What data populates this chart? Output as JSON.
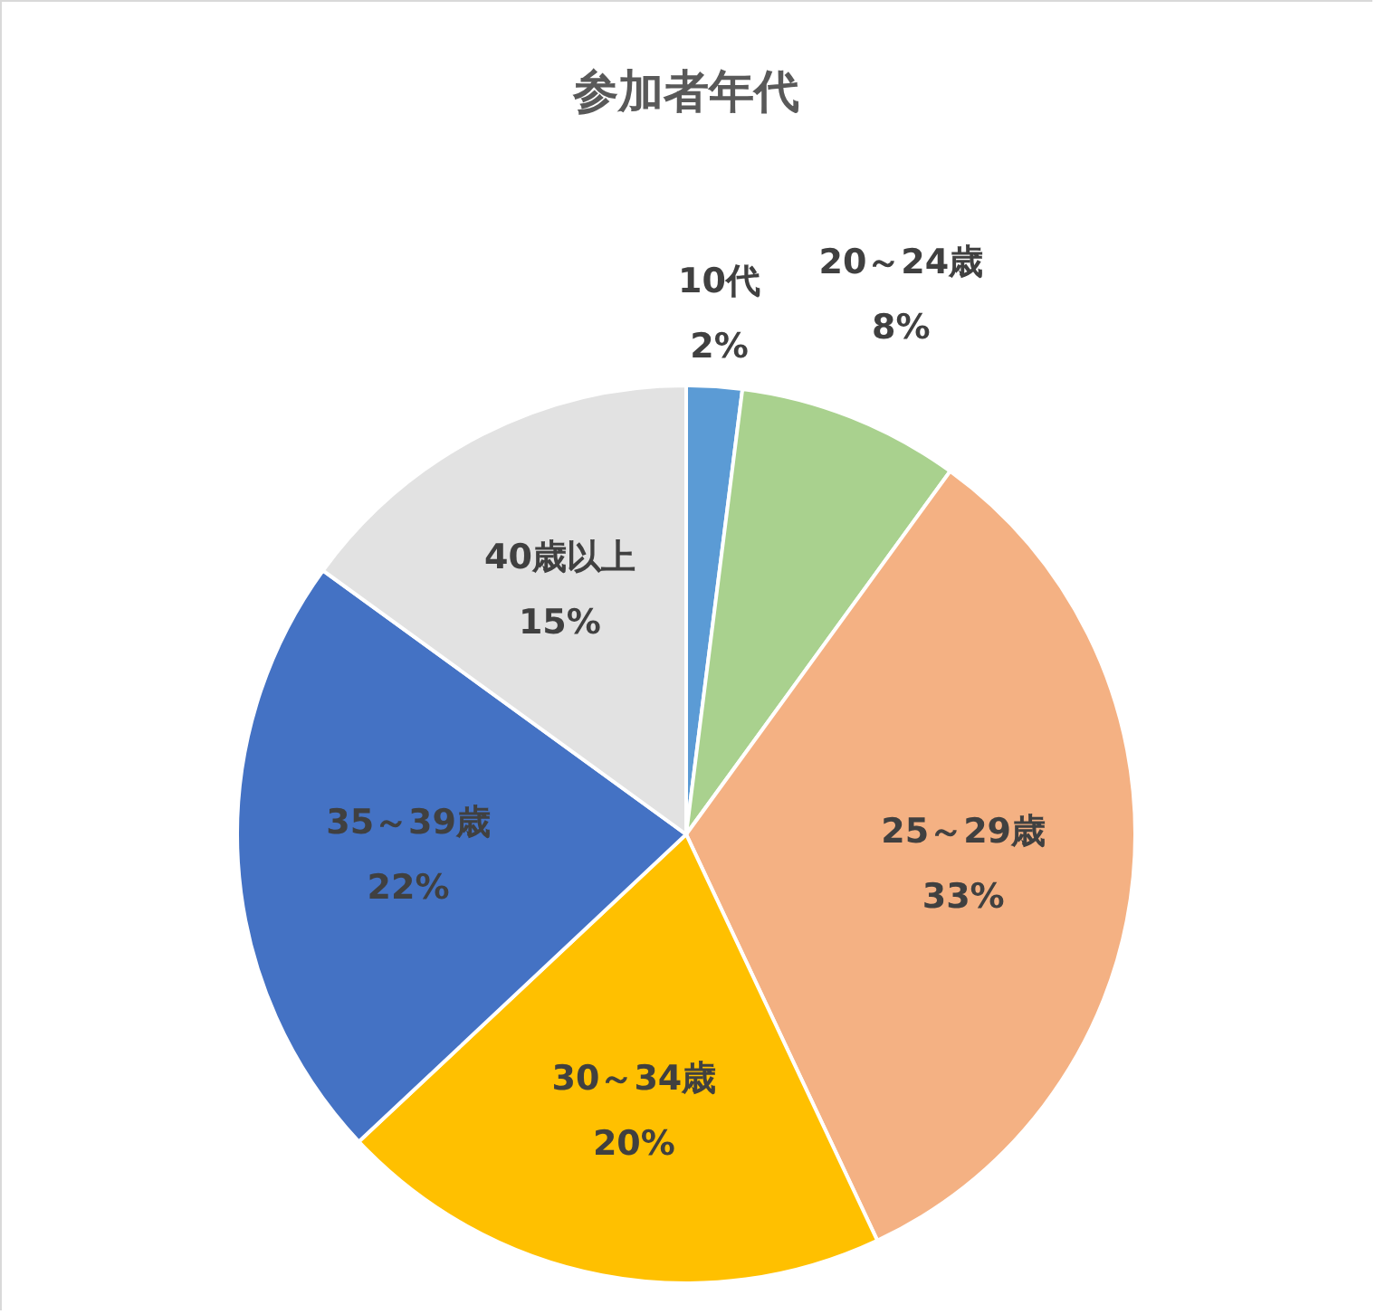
{
  "chart_data": {
    "type": "pie",
    "title": "参加者年代",
    "categories": [
      "10代",
      "20～24歳",
      "25～29歳",
      "30～34歳",
      "35～39歳",
      "40歳以上"
    ],
    "values": [
      2,
      8,
      33,
      20,
      22,
      15
    ],
    "value_labels": [
      "2%",
      "8%",
      "33%",
      "20%",
      "22%",
      "15%"
    ],
    "colors": [
      "#5b9bd5",
      "#a9d18e",
      "#f4b183",
      "#ffc000",
      "#4472c4",
      "#e2e2e2"
    ],
    "legend": false
  }
}
